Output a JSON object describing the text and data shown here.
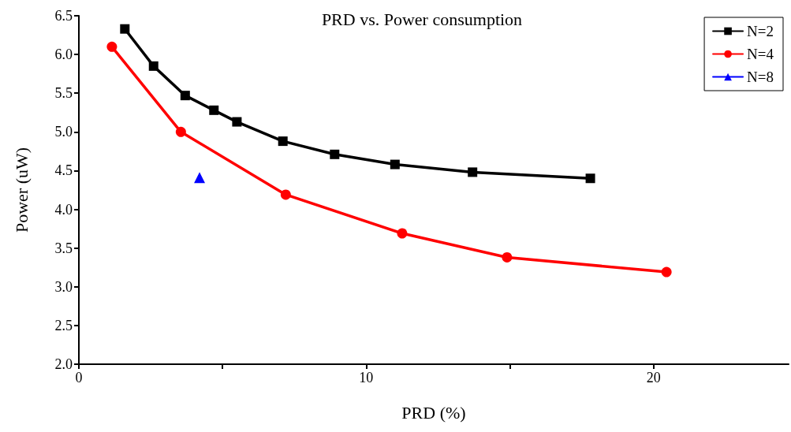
{
  "chart_data": {
    "type": "line",
    "title": "PRD vs. Power consumption",
    "xlabel": "PRD (%)",
    "ylabel": "Power (uW)",
    "xlim": [
      0,
      24.7
    ],
    "xticks": [
      0,
      {
        "value": 5,
        "label": null
      },
      10,
      {
        "value": 15,
        "label": null
      },
      20
    ],
    "ylim": [
      2.0,
      6.5
    ],
    "yticks": [
      {
        "value": 2.0,
        "label": "2.0"
      },
      2.5,
      {
        "value": 3.0,
        "label": "3.0"
      },
      3.5,
      {
        "value": 4.0,
        "label": "4.0"
      },
      4.5,
      {
        "value": 5.0,
        "label": "5.0"
      },
      5.5,
      {
        "value": 6.0,
        "label": "6.0"
      },
      6.5
    ],
    "grid": false,
    "legend": "top right",
    "line_style": "solid",
    "series": [
      {
        "name": "N=2",
        "color": "#000000",
        "marker": "square",
        "x": [
          1.6,
          2.6,
          3.7,
          4.7,
          5.5,
          7.1,
          8.9,
          11.0,
          13.7,
          17.8
        ],
        "values": [
          6.33,
          5.85,
          5.47,
          5.28,
          5.13,
          4.88,
          4.71,
          4.58,
          4.48,
          4.4
        ]
      },
      {
        "name": "N=4",
        "color": "#ff0000",
        "marker": "circle",
        "x": [
          1.15,
          3.55,
          7.2,
          11.25,
          14.9,
          20.45
        ],
        "values": [
          6.1,
          5.0,
          4.19,
          3.69,
          3.38,
          3.19
        ]
      },
      {
        "name": "N=8",
        "color": "#0000ff",
        "marker": "triangle",
        "x": [
          4.2
        ],
        "values": [
          4.41
        ]
      }
    ]
  }
}
